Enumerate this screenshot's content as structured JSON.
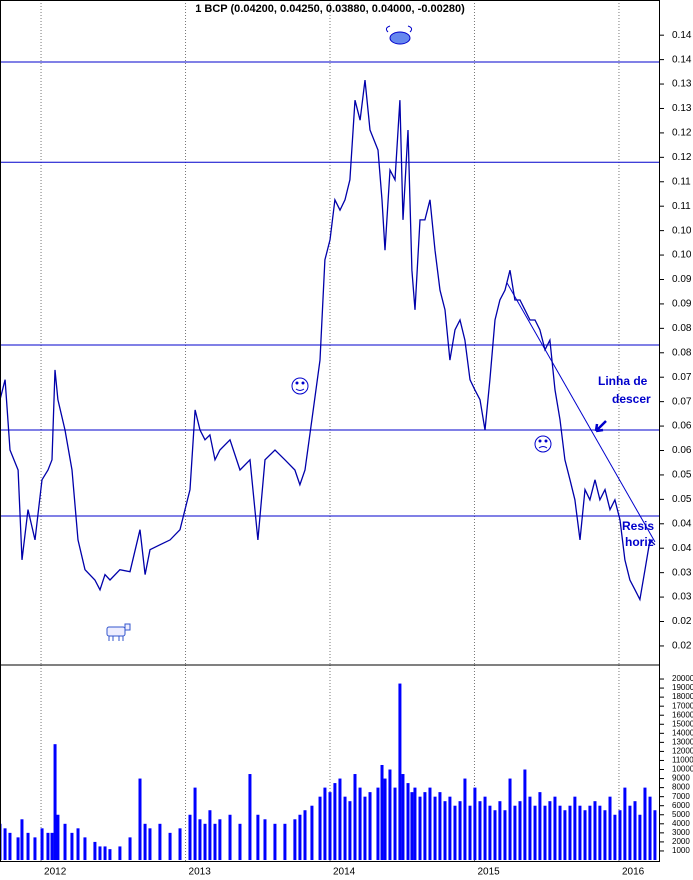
{
  "chart_data": [
    {
      "type": "line",
      "title": "1 BCP (0.04200, 0.04250, 0.03880, 0.04000, -0.00280)",
      "color": "#0000aa",
      "grid": true,
      "xlim": [
        2011.716,
        2016.284
      ],
      "xticks": [
        2012,
        2013,
        2014,
        2015,
        2016
      ],
      "ylim": [
        0.0161,
        0.1522
      ],
      "yticks": [
        {
          "value": 0.145,
          "label": "0.14"
        },
        0.14,
        {
          "value": 0.135,
          "label": "0.13"
        },
        0.13,
        {
          "value": 0.125,
          "label": "0.12"
        },
        0.12,
        {
          "value": 0.115,
          "label": "0.11"
        },
        0.11,
        {
          "value": 0.105,
          "label": "0.10"
        },
        {
          "value": 0.1,
          "label": "0.10"
        },
        {
          "value": 0.095,
          "label": "0.09"
        },
        0.09,
        {
          "value": 0.085,
          "label": "0.08"
        },
        0.08,
        {
          "value": 0.075,
          "label": "0.07"
        },
        0.07,
        {
          "value": 0.065,
          "label": "0.06"
        },
        0.06,
        {
          "value": 0.055,
          "label": "0.05"
        },
        0.05,
        {
          "value": 0.045,
          "label": "0.04"
        },
        0.04,
        {
          "value": 0.035,
          "label": "0.03"
        },
        0.03,
        {
          "value": 0.025,
          "label": "0.02"
        },
        0.02
      ],
      "x": [
        2011.716,
        2011.751,
        2011.785,
        2011.841,
        2011.868,
        2011.91,
        2011.958,
        2012.007,
        2012.048,
        2012.076,
        2012.097,
        2012.117,
        2012.166,
        2012.214,
        2012.256,
        2012.304,
        2012.373,
        2012.408,
        2012.443,
        2012.477,
        2012.546,
        2012.616,
        2012.685,
        2012.72,
        2012.754,
        2012.823,
        2012.893,
        2012.962,
        2013.031,
        2013.066,
        2013.1,
        2013.135,
        2013.169,
        2013.204,
        2013.238,
        2013.308,
        2013.377,
        2013.446,
        2013.501,
        2013.55,
        2013.619,
        2013.688,
        2013.757,
        2013.792,
        2013.827,
        2013.875,
        2013.931,
        2013.965,
        2014.0,
        2014.034,
        2014.069,
        2014.104,
        2014.138,
        2014.173,
        2014.208,
        2014.242,
        2014.277,
        2014.332,
        2014.36,
        2014.381,
        2014.415,
        2014.45,
        2014.484,
        2014.505,
        2014.54,
        2014.567,
        2014.588,
        2014.623,
        2014.657,
        2014.692,
        2014.727,
        2014.761,
        2014.796,
        2014.83,
        2014.865,
        2014.9,
        2014.934,
        2014.969,
        2015.003,
        2015.038,
        2015.073,
        2015.107,
        2015.142,
        2015.176,
        2015.211,
        2015.246,
        2015.28,
        2015.315,
        2015.349,
        2015.384,
        2015.419,
        2015.453,
        2015.488,
        2015.522,
        2015.557,
        2015.592,
        2015.626,
        2015.661,
        2015.695,
        2015.73,
        2015.765,
        2015.799,
        2015.834,
        2015.868,
        2015.903,
        2015.938,
        2015.972,
        2016.007,
        2016.041,
        2016.076,
        2016.111,
        2016.145,
        2016.18,
        2016.215,
        2016.249
      ],
      "values": [
        0.0704,
        0.0745,
        0.0601,
        0.056,
        0.0376,
        0.0479,
        0.0417,
        0.054,
        0.056,
        0.0581,
        0.0765,
        0.0704,
        0.0642,
        0.056,
        0.0417,
        0.0356,
        0.0335,
        0.0315,
        0.0346,
        0.0335,
        0.0356,
        0.0352,
        0.0438,
        0.0346,
        0.0397,
        0.0407,
        0.0417,
        0.0438,
        0.052,
        0.0683,
        0.0642,
        0.0622,
        0.0632,
        0.0581,
        0.0601,
        0.0622,
        0.056,
        0.0581,
        0.0417,
        0.0581,
        0.0601,
        0.0581,
        0.056,
        0.053,
        0.056,
        0.0663,
        0.0785,
        0.099,
        0.1031,
        0.1113,
        0.1092,
        0.1113,
        0.1154,
        0.1317,
        0.1276,
        0.1358,
        0.1256,
        0.1215,
        0.1113,
        0.101,
        0.1174,
        0.1154,
        0.1317,
        0.1072,
        0.1256,
        0.0969,
        0.0888,
        0.1072,
        0.1072,
        0.1113,
        0.101,
        0.0928,
        0.0888,
        0.0785,
        0.0847,
        0.0867,
        0.0826,
        0.0745,
        0.0724,
        0.0704,
        0.0642,
        0.0745,
        0.0867,
        0.0908,
        0.0928,
        0.0969,
        0.0908,
        0.0908,
        0.0888,
        0.0867,
        0.0867,
        0.0847,
        0.0806,
        0.0826,
        0.0724,
        0.0663,
        0.0581,
        0.054,
        0.0499,
        0.0417,
        0.052,
        0.0499,
        0.054,
        0.0499,
        0.052,
        0.0479,
        0.0499,
        0.0458,
        0.0376,
        0.0335,
        0.0315,
        0.0295,
        0.0356,
        0.0417,
        0.0407
      ],
      "hlines": [
        0.1395,
        0.119,
        0.0816,
        0.0642,
        0.0466
      ],
      "trendline": {
        "x": [
          2015.225,
          2016.249
        ],
        "values": [
          0.0943,
          0.0413
        ]
      },
      "annotations": [
        "Linha de",
        "descer",
        "Resis",
        "horiz"
      ]
    },
    {
      "type": "bar",
      "color": "#0000ff",
      "xlim": [
        2011.716,
        2016.284
      ],
      "xticks": [
        2012,
        2013,
        2014,
        2015,
        2016
      ],
      "ylim": [
        0,
        21550
      ],
      "yticks": [
        1000,
        2000,
        3000,
        4000,
        5000,
        6000,
        7000,
        8000,
        9000,
        10000,
        11000,
        12000,
        13000,
        14000,
        15000,
        16000,
        17000,
        18000,
        19000,
        20000
      ],
      "x": [
        2011.716,
        2011.751,
        2011.785,
        2011.841,
        2011.868,
        2011.91,
        2011.958,
        2012.007,
        2012.048,
        2012.076,
        2012.097,
        2012.117,
        2012.166,
        2012.214,
        2012.256,
        2012.304,
        2012.373,
        2012.408,
        2012.443,
        2012.477,
        2012.546,
        2012.616,
        2012.685,
        2012.72,
        2012.754,
        2012.823,
        2012.893,
        2012.962,
        2013.031,
        2013.066,
        2013.1,
        2013.135,
        2013.169,
        2013.204,
        2013.238,
        2013.308,
        2013.377,
        2013.446,
        2013.501,
        2013.55,
        2013.619,
        2013.688,
        2013.757,
        2013.792,
        2013.827,
        2013.875,
        2013.931,
        2013.965,
        2014.0,
        2014.034,
        2014.069,
        2014.104,
        2014.138,
        2014.173,
        2014.208,
        2014.242,
        2014.277,
        2014.332,
        2014.36,
        2014.381,
        2014.415,
        2014.45,
        2014.484,
        2014.505,
        2014.54,
        2014.567,
        2014.588,
        2014.623,
        2014.657,
        2014.692,
        2014.727,
        2014.761,
        2014.796,
        2014.83,
        2014.865,
        2014.9,
        2014.934,
        2014.969,
        2015.003,
        2015.038,
        2015.073,
        2015.107,
        2015.142,
        2015.176,
        2015.211,
        2015.246,
        2015.28,
        2015.315,
        2015.349,
        2015.384,
        2015.419,
        2015.453,
        2015.488,
        2015.522,
        2015.557,
        2015.592,
        2015.626,
        2015.661,
        2015.695,
        2015.73,
        2015.765,
        2015.799,
        2015.834,
        2015.868,
        2015.903,
        2015.938,
        2015.972,
        2016.007,
        2016.041,
        2016.076,
        2016.111,
        2016.145,
        2016.18,
        2016.215,
        2016.249
      ],
      "values": [
        4000,
        3500,
        3000,
        2500,
        4500,
        3000,
        2500,
        3500,
        3000,
        3000,
        12800,
        5000,
        4000,
        3000,
        3500,
        2500,
        2000,
        1500,
        1500,
        1200,
        1500,
        2500,
        9000,
        4000,
        3500,
        4000,
        3000,
        3500,
        5000,
        8000,
        4500,
        4000,
        5500,
        4000,
        4500,
        5000,
        4000,
        9500,
        5000,
        4500,
        4000,
        4000,
        4500,
        5000,
        5500,
        6000,
        7000,
        8000,
        7500,
        8500,
        9000,
        7000,
        6500,
        9500,
        8000,
        7000,
        7500,
        8000,
        10500,
        9000,
        10000,
        8000,
        19500,
        9500,
        8500,
        7500,
        8000,
        7000,
        7500,
        8000,
        7000,
        7500,
        6500,
        7000,
        6000,
        6500,
        9000,
        6000,
        8000,
        6500,
        7000,
        6000,
        5500,
        6500,
        5500,
        9000,
        6000,
        6500,
        10000,
        7000,
        6000,
        7500,
        6000,
        6500,
        7000,
        6000,
        5500,
        6000,
        7000,
        6000,
        5500,
        6000,
        6500,
        6000,
        5500,
        7000,
        5000,
        5500,
        8000,
        6000,
        6500,
        5000,
        8000,
        7000,
        5500
      ]
    }
  ]
}
